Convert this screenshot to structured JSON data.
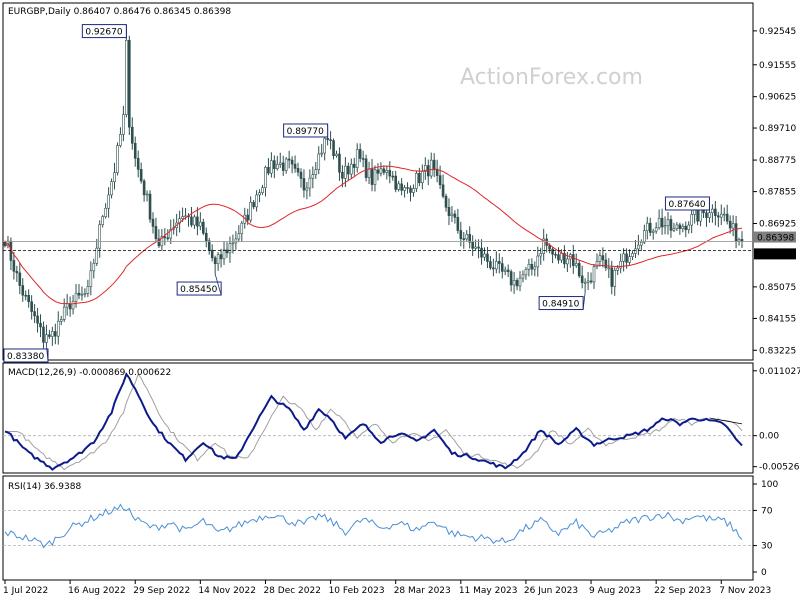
{
  "header": {
    "symbol_line": "EURGBP,Daily  0.86407 0.86476 0.86345 0.86398",
    "watermark": "ActionForex.com"
  },
  "colors": {
    "candles": "#2f4f4f",
    "ma": "#e0262a",
    "macd": "#0d1b8a",
    "signal": "#a0a0a0",
    "rsi": "#4a8fd6",
    "box_border": "#1b2a80"
  },
  "chart_data": [
    {
      "type": "candlestick",
      "name_label": "EURGBP,Daily",
      "header_values": [
        "0.86407",
        "0.86476",
        "0.86345",
        "0.86398"
      ],
      "ylim": [
        0.83,
        0.933
      ],
      "y_ticks": [
        "0.92545",
        "0.91555",
        "0.90625",
        "0.89710",
        "0.88775",
        "0.87855",
        "0.86925",
        "0.85075",
        "0.84155",
        "0.83225"
      ],
      "x_ticks": [
        "1 Jul 2022",
        "16 Aug 2022",
        "29 Sep 2022",
        "14 Nov 2022",
        "28 Dec 2022",
        "10 Feb 2023",
        "28 Mar 2023",
        "11 May 2023",
        "26 Jun 2023",
        "9 Aug 2023",
        "22 Sep 2023",
        "7 Nov 2023"
      ],
      "current_price": "0.86398",
      "support_level": "0.86140",
      "annotations": [
        {
          "label": "0.92670",
          "value": 0.9267,
          "index": 41
        },
        {
          "label": "0.89770",
          "value": 0.8977,
          "index": 109
        },
        {
          "label": "0.85450",
          "value": 0.8545,
          "index": 71
        },
        {
          "label": "0.83380",
          "value": 0.8338,
          "index": 14
        },
        {
          "label": "0.84910",
          "value": 0.8491,
          "index": 196
        },
        {
          "label": "0.87640",
          "value": 0.8764,
          "index": 238
        }
      ],
      "anchors": [
        [
          0,
          0.865
        ],
        [
          5,
          0.851
        ],
        [
          14,
          0.8338
        ],
        [
          22,
          0.846
        ],
        [
          28,
          0.849
        ],
        [
          33,
          0.872
        ],
        [
          37,
          0.885
        ],
        [
          41,
          0.905
        ],
        [
          44,
          0.888
        ],
        [
          48,
          0.876
        ],
        [
          52,
          0.862
        ],
        [
          56,
          0.868
        ],
        [
          60,
          0.872
        ],
        [
          66,
          0.868
        ],
        [
          71,
          0.857
        ],
        [
          76,
          0.863
        ],
        [
          80,
          0.868
        ],
        [
          85,
          0.878
        ],
        [
          90,
          0.887
        ],
        [
          96,
          0.886
        ],
        [
          101,
          0.88
        ],
        [
          106,
          0.889
        ],
        [
          109,
          0.895
        ],
        [
          114,
          0.883
        ],
        [
          119,
          0.889
        ],
        [
          124,
          0.882
        ],
        [
          129,
          0.886
        ],
        [
          134,
          0.878
        ],
        [
          139,
          0.882
        ],
        [
          144,
          0.886
        ],
        [
          148,
          0.876
        ],
        [
          154,
          0.866
        ],
        [
          160,
          0.861
        ],
        [
          166,
          0.856
        ],
        [
          172,
          0.852
        ],
        [
          178,
          0.856
        ],
        [
          182,
          0.864
        ],
        [
          186,
          0.859
        ],
        [
          191,
          0.86
        ],
        [
          196,
          0.8515
        ],
        [
          201,
          0.858
        ],
        [
          205,
          0.853
        ],
        [
          210,
          0.86
        ],
        [
          215,
          0.866
        ],
        [
          221,
          0.87
        ],
        [
          226,
          0.867
        ],
        [
          231,
          0.87
        ],
        [
          235,
          0.872
        ],
        [
          238,
          0.873
        ],
        [
          242,
          0.873
        ],
        [
          245,
          0.868
        ],
        [
          249,
          0.864
        ]
      ]
    },
    {
      "type": "line",
      "name_label": "MACD(12,26,9) -0.000869 0.000622",
      "ylim": [
        -0.006,
        0.0115
      ],
      "y_ticks": [
        "0.011027",
        "0.00",
        "-0.005267"
      ],
      "macd_anchors": [
        [
          0,
          0.001
        ],
        [
          8,
          -0.003
        ],
        [
          16,
          -0.0055
        ],
        [
          24,
          -0.0035
        ],
        [
          30,
          -0.001
        ],
        [
          36,
          0.004
        ],
        [
          41,
          0.0105
        ],
        [
          44,
          0.008
        ],
        [
          50,
          0.002
        ],
        [
          56,
          -0.0015
        ],
        [
          61,
          -0.004
        ],
        [
          67,
          -0.001
        ],
        [
          72,
          -0.0035
        ],
        [
          78,
          -0.004
        ],
        [
          84,
          0.0015
        ],
        [
          90,
          0.0065
        ],
        [
          96,
          0.0045
        ],
        [
          101,
          0.001
        ],
        [
          106,
          0.0045
        ],
        [
          110,
          0.003
        ],
        [
          115,
          -0.0005
        ],
        [
          121,
          0.002
        ],
        [
          127,
          -0.001
        ],
        [
          133,
          0.0005
        ],
        [
          139,
          -0.001
        ],
        [
          145,
          0.001
        ],
        [
          151,
          -0.003
        ],
        [
          157,
          -0.0035
        ],
        [
          163,
          -0.0045
        ],
        [
          169,
          -0.0055
        ],
        [
          175,
          -0.003
        ],
        [
          181,
          0.001
        ],
        [
          187,
          -0.0015
        ],
        [
          193,
          0.001
        ],
        [
          199,
          -0.0015
        ],
        [
          205,
          -0.0005
        ],
        [
          211,
          0.0
        ],
        [
          217,
          0.001
        ],
        [
          223,
          0.003
        ],
        [
          228,
          0.002
        ],
        [
          233,
          0.003
        ],
        [
          238,
          0.0025
        ],
        [
          243,
          0.002
        ],
        [
          246,
          0.0
        ],
        [
          249,
          -0.0018
        ]
      ],
      "signal_lag": 4,
      "trendline": [
        [
          238,
          0.003
        ],
        [
          249,
          0.002
        ]
      ]
    },
    {
      "type": "line",
      "name_label": "RSI(14) 36.9388",
      "ylim": [
        0,
        100
      ],
      "y_ticks": [
        "100",
        "70",
        "30",
        "0"
      ],
      "levels": [
        70,
        30
      ],
      "anchors": [
        [
          0,
          45
        ],
        [
          8,
          38
        ],
        [
          14,
          30
        ],
        [
          22,
          50
        ],
        [
          30,
          62
        ],
        [
          36,
          70
        ],
        [
          41,
          74
        ],
        [
          44,
          60
        ],
        [
          50,
          50
        ],
        [
          56,
          56
        ],
        [
          61,
          46
        ],
        [
          67,
          58
        ],
        [
          72,
          44
        ],
        [
          78,
          52
        ],
        [
          84,
          60
        ],
        [
          90,
          66
        ],
        [
          96,
          58
        ],
        [
          101,
          54
        ],
        [
          106,
          64
        ],
        [
          110,
          58
        ],
        [
          115,
          46
        ],
        [
          121,
          60
        ],
        [
          127,
          50
        ],
        [
          133,
          56
        ],
        [
          139,
          48
        ],
        [
          145,
          58
        ],
        [
          151,
          44
        ],
        [
          157,
          40
        ],
        [
          163,
          38
        ],
        [
          169,
          34
        ],
        [
          175,
          48
        ],
        [
          181,
          58
        ],
        [
          187,
          44
        ],
        [
          193,
          56
        ],
        [
          199,
          40
        ],
        [
          205,
          48
        ],
        [
          211,
          58
        ],
        [
          217,
          62
        ],
        [
          223,
          66
        ],
        [
          228,
          58
        ],
        [
          233,
          64
        ],
        [
          238,
          60
        ],
        [
          243,
          58
        ],
        [
          246,
          50
        ],
        [
          249,
          37
        ]
      ]
    }
  ]
}
